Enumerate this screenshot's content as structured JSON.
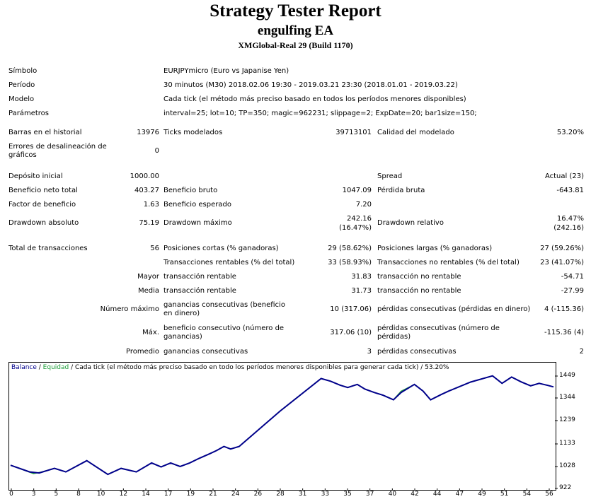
{
  "header": {
    "title": "Strategy Tester Report",
    "ea_name": "engulfing EA",
    "server": "XMGlobal-Real 29 (Build 1170)"
  },
  "info": {
    "symbol_label": "Símbolo",
    "symbol_value": "EURJPYmicro (Euro vs Japanise Yen)",
    "period_label": "Período",
    "period_value": "30 minutos (M30) 2018.02.06 19:30 - 2019.03.21 23:30 (2018.01.01 - 2019.03.22)",
    "model_label": "Modelo",
    "model_value": "Cada tick (el método más preciso basado en todos los períodos menores disponibles)",
    "params_label": "Parámetros",
    "params_value": "interval=25; lot=10; TP=350; magic=962231; slippage=2; ExpDate=20; bar1size=150;"
  },
  "stats": {
    "bars_label": "Barras en el historial",
    "bars_value": "13976",
    "ticks_label": "Ticks modelados",
    "ticks_value": "39713101",
    "quality_label": "Calidad del modelado",
    "quality_value": "53.20%",
    "errors_label": "Errores de desalineación de gráficos",
    "errors_value": "0",
    "deposit_label": "Depósito inicial",
    "deposit_value": "1000.00",
    "spread_label": "Spread",
    "spread_value": "Actual (23)",
    "net_label": "Beneficio neto total",
    "net_value": "403.27",
    "gross_profit_label": "Beneficio bruto",
    "gross_profit_value": "1047.09",
    "gross_loss_label": "Pérdida bruta",
    "gross_loss_value": "-643.81",
    "pf_label": "Factor de beneficio",
    "pf_value": "1.63",
    "expected_label": "Beneficio esperado",
    "expected_value": "7.20",
    "dd_abs_label": "Drawdown absoluto",
    "dd_abs_value": "75.19",
    "dd_max_label": "Drawdown máximo",
    "dd_max_value_1": "242.16",
    "dd_max_value_2": "(16.47%)",
    "dd_rel_label": "Drawdown relativo",
    "dd_rel_value_1": "16.47%",
    "dd_rel_value_2": "(242.16)",
    "trades_label": "Total de transacciones",
    "trades_value": "56",
    "short_label": "Posiciones cortas (% ganadoras)",
    "short_value": "29 (58.62%)",
    "long_label": "Posiciones largas (% ganadoras)",
    "long_value": "27 (59.26%)",
    "profit_trades_label": "Transacciones rentables (% del total)",
    "profit_trades_value": "33 (58.93%)",
    "loss_trades_label": "Transacciones no rentables (% del total)",
    "loss_trades_value": "23 (41.07%)",
    "largest_label": "Mayor",
    "largest_profit_label": "transacción rentable",
    "largest_profit_value": "31.83",
    "largest_loss_label": "transacción no rentable",
    "largest_loss_value": "-54.71",
    "average_label": "Media",
    "average_profit_label": "transacción rentable",
    "average_profit_value": "31.73",
    "average_loss_label": "transacción no rentable",
    "average_loss_value": "-27.99",
    "max_cons_label": "Número máximo",
    "max_cons_wins_label": "ganancias consecutivas (beneficio en dinero)",
    "max_cons_wins_value": "10 (317.06)",
    "max_cons_losses_label": "pérdidas consecutivas (pérdidas en dinero)",
    "max_cons_losses_value": "4 (-115.36)",
    "max_profit_label": "Máx.",
    "max_cons_profit_label": "beneficio consecutivo (número de ganancias)",
    "max_cons_profit_value": "317.06 (10)",
    "max_cons_loss_label": "pérdidas consecutivas (número de pérdidas)",
    "max_cons_loss_value": "-115.36 (4)",
    "avg_cons_label": "Promedio",
    "avg_cons_wins_label": "ganancias consecutivas",
    "avg_cons_wins_value": "3",
    "avg_cons_losses_label": "pérdidas consecutivas",
    "avg_cons_losses_value": "2"
  },
  "chart_legend": {
    "balance": "Balance",
    "sep1": " / ",
    "equity": "Equidad",
    "rest": " / Cada tick (el método más preciso basado en todo los períodos menores disponibles para generar cada tick)  / 53.20%"
  },
  "chart_data": {
    "type": "line",
    "colors": {
      "balance": "#00008b",
      "equity": "#1e9e3a"
    },
    "ylim": [
      922,
      1485
    ],
    "ytick_labels": [
      "1449",
      "1344",
      "1239",
      "1133",
      "1028",
      "922"
    ],
    "xlim": [
      0,
      57
    ],
    "xtick_labels": [
      "0",
      "3",
      "5",
      "8",
      "10",
      "12",
      "14",
      "17",
      "19",
      "21",
      "24",
      "26",
      "28",
      "31",
      "33",
      "35",
      "37",
      "40",
      "42",
      "44",
      "47",
      "49",
      "51",
      "54",
      "56"
    ],
    "grid": false,
    "series": [
      {
        "name": "Balance",
        "x": [
          0,
          2,
          3,
          4.6,
          5.8,
          8,
          10.2,
          11.6,
          13.2,
          14.8,
          15.8,
          16.8,
          17.8,
          18.8,
          19.8,
          20.9,
          21.6,
          22.4,
          23.1,
          24.0,
          28.3,
          32.6,
          33.6,
          34.6,
          35.4,
          36.4,
          37.2,
          38.2,
          39.1,
          40.2,
          41.0,
          42.4,
          43.3,
          44.1,
          45.2,
          46.0,
          48.3,
          50.6,
          51.6,
          52.6,
          53.6,
          54.6,
          55.5,
          56.4,
          57.0
        ],
        "y": [
          1030,
          998,
          993,
          1015,
          998,
          1052,
          986,
          1015,
          998,
          1041,
          1022,
          1041,
          1024,
          1041,
          1063,
          1085,
          1100,
          1120,
          1108,
          1120,
          1290,
          1446,
          1433,
          1414,
          1403,
          1418,
          1395,
          1379,
          1366,
          1344,
          1379,
          1418,
          1386,
          1344,
          1369,
          1386,
          1429,
          1459,
          1423,
          1453,
          1430,
          1411,
          1423,
          1413,
          1406
        ],
        "color": "#00008b"
      },
      {
        "name": "Equidad",
        "x": [
          0,
          1.2,
          2.4,
          3.2,
          4.6,
          5.8,
          8,
          10.2,
          11.6,
          13.2,
          14.8,
          15.8,
          16.8,
          17.8,
          18.8,
          19.8,
          20.9,
          21.6,
          22.4,
          23.1,
          24.0,
          28.3,
          32.6,
          33.6,
          34.6,
          35.4,
          36.4,
          37.2,
          38.2,
          39.1,
          40.2,
          41.0,
          42.0,
          42.4,
          43.3,
          44.1,
          45.2,
          46.0,
          48.3,
          50.6,
          51.6,
          52.6,
          53.6,
          54.6,
          55.5,
          56.4,
          57.0
        ],
        "y": [
          1030,
          1010,
          990,
          997,
          1015,
          998,
          1052,
          986,
          1015,
          998,
          1041,
          1022,
          1041,
          1024,
          1041,
          1063,
          1085,
          1100,
          1120,
          1108,
          1120,
          1290,
          1446,
          1433,
          1414,
          1403,
          1418,
          1395,
          1379,
          1366,
          1344,
          1385,
          1408,
          1418,
          1386,
          1344,
          1369,
          1386,
          1429,
          1459,
          1423,
          1453,
          1430,
          1411,
          1423,
          1413,
          1406
        ],
        "color": "#1e9e3a"
      }
    ]
  }
}
